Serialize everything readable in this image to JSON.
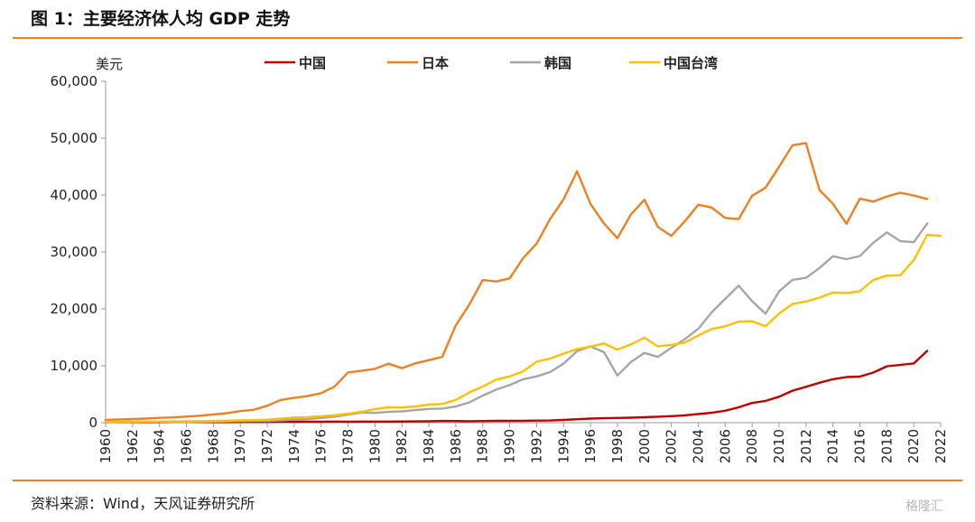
{
  "title": "图 1：主要经济体人均 GDP 走势",
  "source": "资料来源：Wind，天风证券研究所",
  "watermark": "格隆汇",
  "chart_data": {
    "type": "line",
    "ylabel": "美元",
    "ylim": [
      0,
      60000
    ],
    "yticks": [
      0,
      10000,
      20000,
      30000,
      40000,
      50000,
      60000
    ],
    "ytick_labels": [
      "0",
      "10,000",
      "20,000",
      "30,000",
      "40,000",
      "50,000",
      "60,000"
    ],
    "xlim": [
      1960,
      2022
    ],
    "xticks": [
      "1960",
      "1962",
      "1964",
      "1966",
      "1968",
      "1970",
      "1972",
      "1974",
      "1976",
      "1978",
      "1980",
      "1982",
      "1984",
      "1986",
      "1988",
      "1990",
      "1992",
      "1994",
      "1996",
      "1998",
      "2000",
      "2002",
      "2004",
      "2006",
      "2008",
      "2010",
      "2012",
      "2014",
      "2016",
      "2018",
      "2020",
      "2022"
    ],
    "legend_position": "top",
    "grid": false,
    "series": [
      {
        "name": "中国",
        "color": "#c00000",
        "start": 1960,
        "values": [
          90,
          76,
          70,
          74,
          85,
          98,
          104,
          97,
          91,
          90,
          113,
          119,
          132,
          157,
          160,
          178,
          165,
          185,
          156,
          183,
          195,
          197,
          203,
          225,
          251,
          294,
          282,
          252,
          283,
          311,
          318,
          333,
          366,
          377,
          473,
          610,
          709,
          782,
          829,
          873,
          959,
          1053,
          1149,
          1289,
          1509,
          1753,
          2099,
          2694,
          3468,
          3832,
          4550,
          5614,
          6300,
          7020,
          7636,
          8016,
          8094,
          8817,
          9905,
          10144,
          10409,
          12618
        ]
      },
      {
        "name": "日本",
        "color": "#f07f21",
        "start": 1960,
        "values": [
          479,
          563,
          634,
          718,
          835,
          919,
          1058,
          1228,
          1450,
          1669,
          2037,
          2272,
          2967,
          3998,
          4354,
          4659,
          5197,
          6335,
          8821,
          9105,
          9463,
          10361,
          9578,
          10425,
          10984,
          11585,
          17112,
          20745,
          25059,
          24813,
          25359,
          28925,
          31465,
          35766,
          39269,
          44198,
          38437,
          35022,
          32424,
          36611,
          39169,
          34406,
          32821,
          35387,
          38299,
          37813,
          35991,
          35779,
          39876,
          41309,
          44968,
          48760,
          49145,
          40898,
          38475,
          34961,
          39375,
          38834,
          39751,
          40416,
          39918,
          39313
        ]
      },
      {
        "name": "韩国",
        "color": "#a6a6a6",
        "start": 1960,
        "values": [
          158,
          94,
          106,
          146,
          124,
          109,
          133,
          161,
          198,
          243,
          279,
          301,
          324,
          406,
          563,
          615,
          830,
          1055,
          1405,
          1784,
          1715,
          1883,
          1992,
          2199,
          2413,
          2482,
          2835,
          3555,
          4749,
          5817,
          6610,
          7637,
          8127,
          8885,
          10385,
          12565,
          13403,
          12398,
          8282,
          10672,
          12257,
          11561,
          13165,
          14673,
          16496,
          19403,
          21743,
          24086,
          21350,
          19144,
          23087,
          25096,
          25467,
          27178,
          29253,
          28724,
          29289,
          31617,
          33447,
          31902,
          31721,
          34998
        ]
      },
      {
        "name": "中国台湾",
        "color": "#ffc000",
        "start": 1960,
        "values": [
          154,
          151,
          162,
          180,
          203,
          217,
          237,
          267,
          304,
          345,
          389,
          443,
          520,
          695,
          920,
          964,
          1132,
          1301,
          1577,
          1920,
          2367,
          2691,
          2650,
          2843,
          3167,
          3290,
          3993,
          5325,
          6333,
          7577,
          8124,
          9016,
          10716,
          11251,
          12123,
          12929,
          13384,
          13904,
          12840,
          13768,
          14941,
          13397,
          13686,
          14066,
          15317,
          16456,
          16934,
          17757,
          17833,
          16933,
          19181,
          20866,
          21295,
          21973,
          22874,
          22780,
          23091,
          25080,
          25838,
          25908,
          28549,
          33011,
          32811
        ]
      }
    ]
  }
}
